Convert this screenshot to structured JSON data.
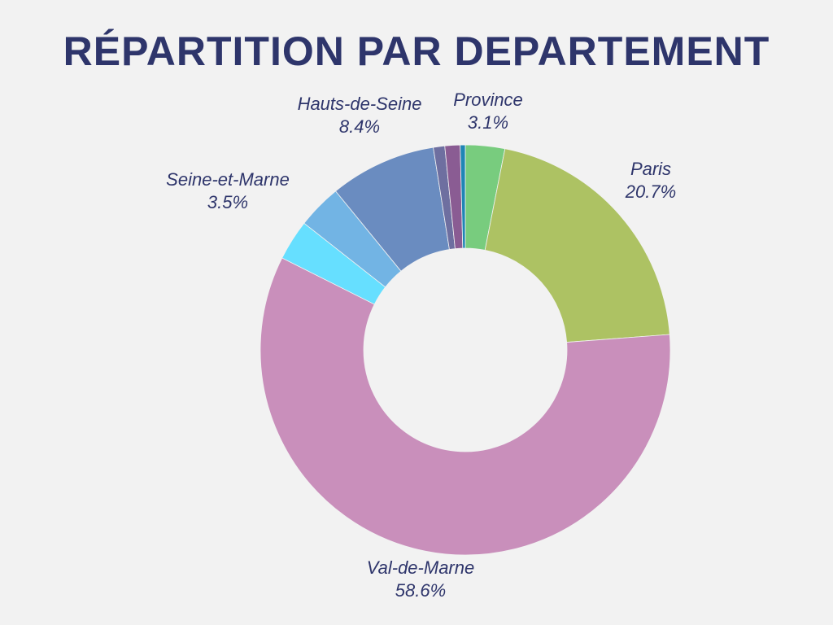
{
  "chart_data": {
    "type": "pie",
    "variant": "donut",
    "title": "RÉPARTITION PAR DEPARTEMENT",
    "slices": [
      {
        "name": "Province",
        "value": 3.1,
        "label": "3.1%",
        "color": "#78cc7e",
        "labeled": true
      },
      {
        "name": "Paris",
        "value": 20.7,
        "label": "20.7%",
        "color": "#adc263",
        "labeled": true
      },
      {
        "name": "Val-de-Marne",
        "value": 58.6,
        "label": "58.6%",
        "color": "#c98fbb",
        "labeled": true
      },
      {
        "name": "",
        "value": 3.2,
        "label": "",
        "color": "#66dfff",
        "labeled": false
      },
      {
        "name": "Seine-et-Marne",
        "value": 3.5,
        "label": "3.5%",
        "color": "#72b4e4",
        "labeled": true
      },
      {
        "name": "Hauts-de-Seine",
        "value": 8.4,
        "label": "8.4%",
        "color": "#6a8cc0",
        "labeled": true
      },
      {
        "name": "",
        "value": 0.9,
        "label": "",
        "color": "#6e6fa0",
        "labeled": false
      },
      {
        "name": "",
        "value": 1.2,
        "label": "",
        "color": "#8a5c93",
        "labeled": false
      },
      {
        "name": "",
        "value": 0.4,
        "label": "",
        "color": "#1f86b5",
        "labeled": false
      }
    ],
    "legend": "none",
    "background": "#f2f2f2"
  }
}
